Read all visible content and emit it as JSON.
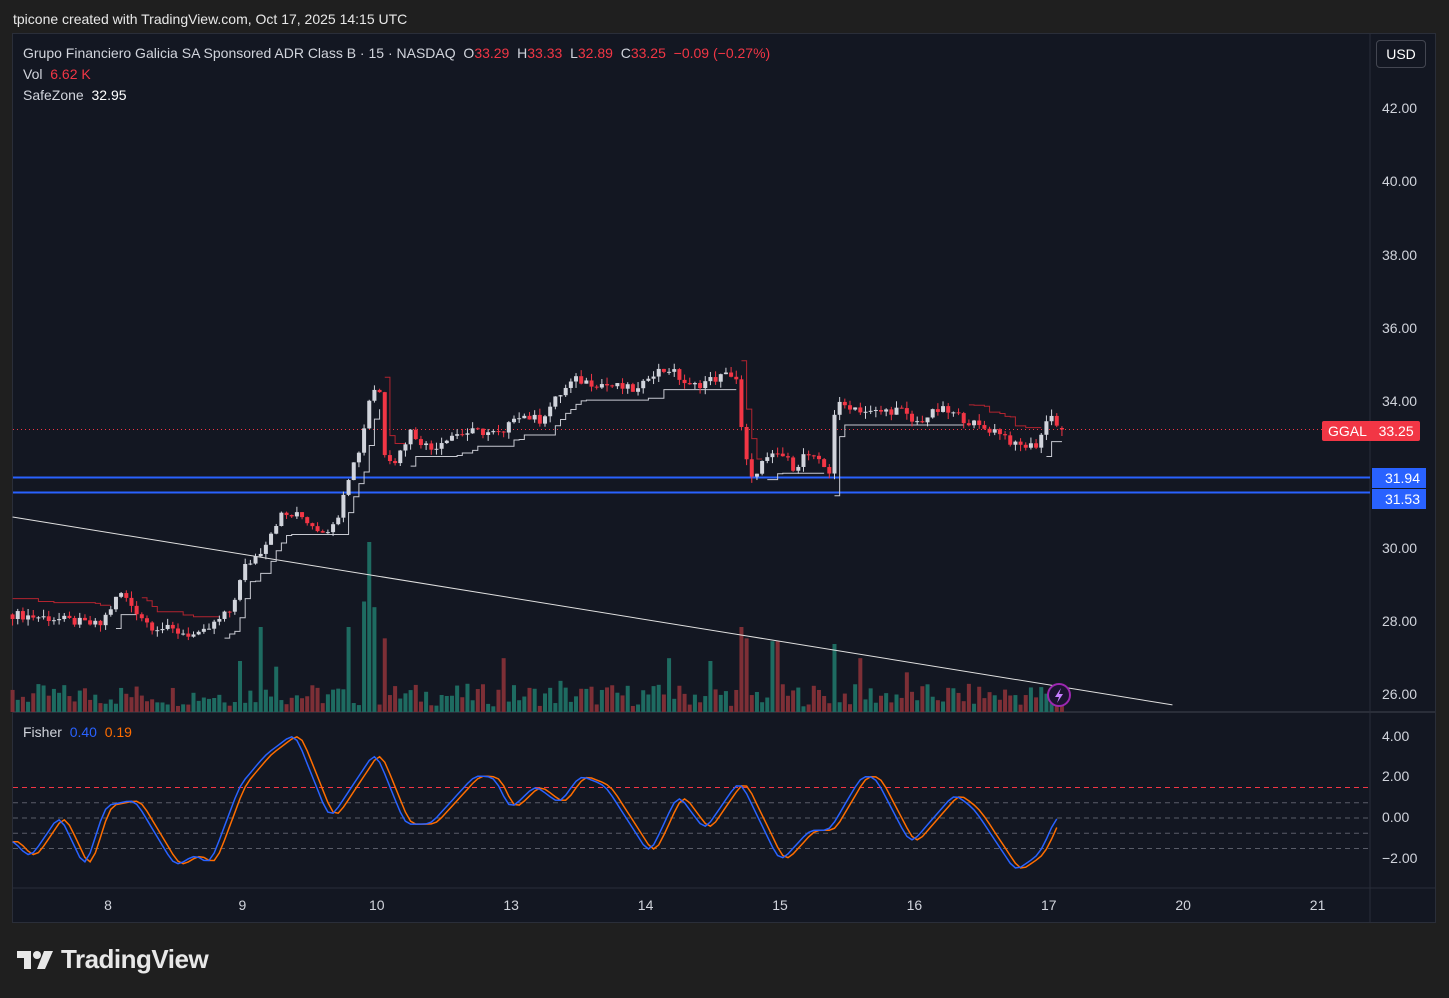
{
  "credit": "tpicone created with TradingView.com, Oct 17, 2025 14:15 UTC",
  "legend": {
    "title": "Grupo Financiero Galicia SA Sponsored ADR Class B · 15 · NASDAQ",
    "o_label": "O",
    "o": "33.29",
    "h_label": "H",
    "h": "33.33",
    "l_label": "L",
    "l": "32.89",
    "c_label": "C",
    "c": "33.25",
    "change": "−0.09 (−0.27%)",
    "vol_label": "Vol",
    "vol": "6.62 K",
    "safezone_label": "SafeZone",
    "safezone": "32.95",
    "fisher_label": "Fisher",
    "fisher_1": "0.40",
    "fisher_2": "0.19"
  },
  "currency_button": "USD",
  "symbol_tag": {
    "symbol": "GGAL",
    "price": "33.25"
  },
  "level_tags": [
    "31.94",
    "31.53"
  ],
  "brand": "TradingView",
  "colors": {
    "up": "#d1d4dc",
    "down": "#f23645",
    "vol_up": "#1e6b61",
    "vol_down": "#7d2f36",
    "level": "#2962ff",
    "fisher_1": "#2962ff",
    "fisher_2": "#ff6d00",
    "safezone_down": "#b2242f",
    "safezone_up": "#c7c9d1"
  },
  "chart_data": [
    {
      "type": "candlestick",
      "title": "GGAL 15m",
      "x_unit": "trading days since Oct 8 open",
      "bars_per_day": 26,
      "x_range": [
        -0.71,
        7.08
      ],
      "xticks": [
        {
          "t": 0,
          "label": "8"
        },
        {
          "t": 1,
          "label": "9"
        },
        {
          "t": 2,
          "label": "10"
        },
        {
          "t": 3,
          "label": "13"
        },
        {
          "t": 4,
          "label": "14"
        },
        {
          "t": 5,
          "label": "15"
        },
        {
          "t": 6,
          "label": "16"
        },
        {
          "t": 7,
          "label": "17"
        },
        {
          "t": 8,
          "label": "20"
        },
        {
          "t": 9,
          "label": "21"
        }
      ],
      "ylim": [
        25.5,
        44.5
      ],
      "yticks": [
        "42.00",
        "40.00",
        "38.00",
        "36.00",
        "34.00",
        "30.00",
        "28.00",
        "26.00"
      ],
      "close_keypoints": [
        [
          -0.71,
          28.2
        ],
        [
          -0.43,
          28.1
        ],
        [
          -0.06,
          27.9
        ],
        [
          0.09,
          28.8
        ],
        [
          0.31,
          27.9
        ],
        [
          0.68,
          27.6
        ],
        [
          0.91,
          28.3
        ],
        [
          1.02,
          29.5
        ],
        [
          1.13,
          29.9
        ],
        [
          1.28,
          30.9
        ],
        [
          1.43,
          30.9
        ],
        [
          1.58,
          30.5
        ],
        [
          1.69,
          30.6
        ],
        [
          1.76,
          31.7
        ],
        [
          1.88,
          32.8
        ],
        [
          1.96,
          34.4
        ],
        [
          2.02,
          34.3
        ],
        [
          2.06,
          32.6
        ],
        [
          2.14,
          32.4
        ],
        [
          2.25,
          33.2
        ],
        [
          2.4,
          32.7
        ],
        [
          2.54,
          33.1
        ],
        [
          2.77,
          33.2
        ],
        [
          2.95,
          33.1
        ],
        [
          3.03,
          33.7
        ],
        [
          3.21,
          33.5
        ],
        [
          3.36,
          34.2
        ],
        [
          3.47,
          34.6
        ],
        [
          3.66,
          34.5
        ],
        [
          3.96,
          34.3
        ],
        [
          4.03,
          34.8
        ],
        [
          4.18,
          34.9
        ],
        [
          4.33,
          34.4
        ],
        [
          4.48,
          34.6
        ],
        [
          4.67,
          34.8
        ],
        [
          4.72,
          33.0
        ],
        [
          4.78,
          31.8
        ],
        [
          4.85,
          32.3
        ],
        [
          5.0,
          32.6
        ],
        [
          5.11,
          32.2
        ],
        [
          5.19,
          32.6
        ],
        [
          5.3,
          32.3
        ],
        [
          5.37,
          32.1
        ],
        [
          5.41,
          33.9
        ],
        [
          5.52,
          33.9
        ],
        [
          5.67,
          33.7
        ],
        [
          5.89,
          33.8
        ],
        [
          6.0,
          33.4
        ],
        [
          6.19,
          33.8
        ],
        [
          6.34,
          33.6
        ],
        [
          6.49,
          33.3
        ],
        [
          6.64,
          33.2
        ],
        [
          6.75,
          32.8
        ],
        [
          6.9,
          32.8
        ],
        [
          6.97,
          33.3
        ],
        [
          7.01,
          33.8
        ],
        [
          7.07,
          33.25
        ]
      ],
      "last": {
        "open": 33.29,
        "high": 33.33,
        "low": 32.89,
        "close": 33.25
      },
      "horizontal_levels": [
        31.94,
        31.53
      ],
      "trendline": [
        [
          -0.71,
          30.86
        ],
        [
          7.92,
          25.73
        ]
      ],
      "volume_unit": "K",
      "volume_spikes": [
        [
          1.0,
          18
        ],
        [
          1.15,
          30
        ],
        [
          1.25,
          16
        ],
        [
          1.8,
          30
        ],
        [
          1.92,
          39
        ],
        [
          1.96,
          60
        ],
        [
          2.0,
          37
        ],
        [
          2.05,
          26
        ],
        [
          2.96,
          19
        ],
        [
          3.35,
          11
        ],
        [
          4.18,
          19
        ],
        [
          4.49,
          18
        ],
        [
          4.71,
          30
        ],
        [
          4.75,
          26
        ],
        [
          4.96,
          25
        ],
        [
          5.0,
          25
        ],
        [
          5.39,
          24
        ],
        [
          5.6,
          19
        ],
        [
          5.95,
          14
        ]
      ],
      "last_volume": 6.62
    },
    {
      "type": "line",
      "title": "Fisher",
      "ylim": [
        -3.2,
        4.8
      ],
      "yticks": [
        {
          "v": 4,
          "label": "4.00"
        },
        {
          "v": 2,
          "label": "2.00"
        },
        {
          "v": 0,
          "label": "0.00"
        },
        {
          "v": -2,
          "label": "−2.00"
        }
      ],
      "reference_levels": {
        "red": 1.5,
        "grey": [
          0.75,
          0,
          -0.75,
          -1.5
        ]
      },
      "series": [
        {
          "name": "Fisher",
          "last": 0.4,
          "keypoints": [
            [
              -0.71,
              -1.1
            ],
            [
              -0.58,
              -2.0
            ],
            [
              -0.36,
              0.15
            ],
            [
              -0.17,
              -2.5
            ],
            [
              -0.02,
              0.6
            ],
            [
              0.2,
              0.9
            ],
            [
              0.5,
              -2.4
            ],
            [
              0.65,
              -1.8
            ],
            [
              0.76,
              -2.3
            ],
            [
              0.98,
              1.6
            ],
            [
              1.17,
              3.1
            ],
            [
              1.39,
              4.2
            ],
            [
              1.65,
              -0.1
            ],
            [
              1.99,
              3.3
            ],
            [
              2.21,
              -0.3
            ],
            [
              2.4,
              -0.3
            ],
            [
              2.73,
              2.1
            ],
            [
              2.88,
              2.0
            ],
            [
              2.99,
              0.4
            ],
            [
              3.18,
              1.6
            ],
            [
              3.36,
              0.7
            ],
            [
              3.51,
              2.1
            ],
            [
              3.7,
              1.6
            ],
            [
              4.03,
              -1.8
            ],
            [
              4.24,
              1.2
            ],
            [
              4.44,
              -0.6
            ],
            [
              4.7,
              1.9
            ],
            [
              5.0,
              -2.2
            ],
            [
              5.22,
              -0.6
            ],
            [
              5.37,
              -0.6
            ],
            [
              5.61,
              2.1
            ],
            [
              5.71,
              2.0
            ],
            [
              5.97,
              -1.3
            ],
            [
              6.3,
              1.2
            ],
            [
              6.45,
              0.4
            ],
            [
              6.75,
              -2.6
            ],
            [
              6.93,
              -1.8
            ],
            [
              7.08,
              0.4
            ]
          ]
        },
        {
          "name": "Trigger",
          "last": 0.19,
          "lag_bars": 1
        }
      ]
    }
  ]
}
